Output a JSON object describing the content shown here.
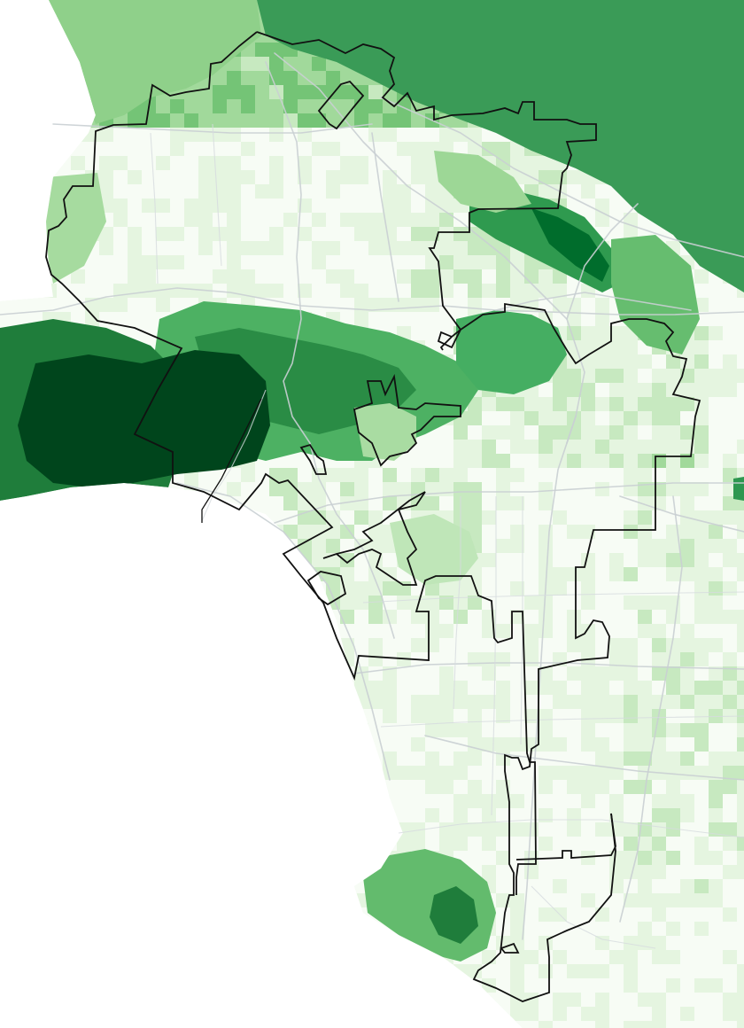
{
  "map": {
    "type": "choropleth",
    "color_scale": {
      "name": "greens",
      "stops": [
        "#f7fcf5",
        "#e5f5e0",
        "#c7e9c0",
        "#a1d99b",
        "#74c476",
        "#41ab5d",
        "#238b45",
        "#006d2c",
        "#00441b"
      ]
    },
    "colors": {
      "ocean": "#ffffff",
      "land_base": "#eef8ea",
      "roads": "#c9cfd3",
      "boundary": "#111111"
    },
    "legend": "none",
    "title": ""
  }
}
